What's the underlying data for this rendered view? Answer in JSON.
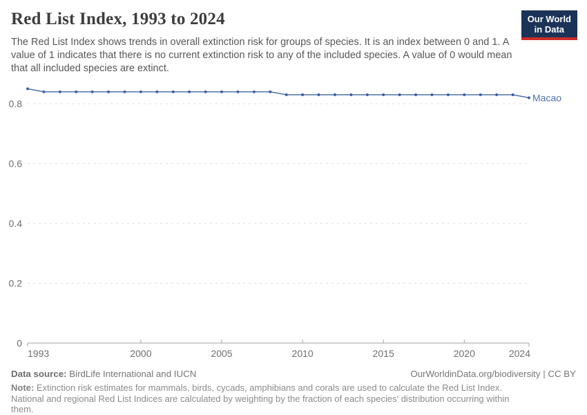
{
  "header": {
    "title": "Red List Index, 1993 to 2024",
    "subtitle": "The Red List Index shows trends in overall extinction risk for groups of species. It is an index between 0 and 1. A value of 1 indicates that there is no current extinction risk to any of the included species. A value of 0 would mean that all included species are extinct."
  },
  "logo": {
    "line1": "Our World",
    "line2": "in Data",
    "bg_color": "#1b3357",
    "accent_color": "#cb2d2a"
  },
  "chart_data": {
    "type": "line",
    "title": "Red List Index, 1993 to 2024",
    "xlabel": "",
    "ylabel": "",
    "xlim": [
      1993,
      2024
    ],
    "ylim": [
      0,
      0.88
    ],
    "x_ticks": [
      1993,
      2000,
      2005,
      2010,
      2015,
      2020,
      2024
    ],
    "y_ticks": [
      0,
      0.2,
      0.4,
      0.6,
      0.8
    ],
    "y_tick_labels": [
      "0",
      "0.2",
      "0.4",
      "0.6",
      "0.8"
    ],
    "grid": "horizontal dashed",
    "legend_position": "end-of-line label",
    "axis_color": "#a1a1a1",
    "grid_color": "#dcdcdc",
    "tick_label_color": "#6e6e6e",
    "series": [
      {
        "name": "Macao",
        "color": "#4e72a9",
        "marker_color": "#3f609f",
        "x": [
          1993,
          1994,
          1995,
          1996,
          1997,
          1998,
          1999,
          2000,
          2001,
          2002,
          2003,
          2004,
          2005,
          2006,
          2007,
          2008,
          2009,
          2010,
          2011,
          2012,
          2013,
          2014,
          2015,
          2016,
          2017,
          2018,
          2019,
          2020,
          2021,
          2022,
          2023,
          2024
        ],
        "values": [
          0.85,
          0.84,
          0.84,
          0.84,
          0.84,
          0.84,
          0.84,
          0.84,
          0.84,
          0.84,
          0.84,
          0.84,
          0.84,
          0.84,
          0.84,
          0.84,
          0.83,
          0.83,
          0.83,
          0.83,
          0.83,
          0.83,
          0.83,
          0.83,
          0.83,
          0.83,
          0.83,
          0.83,
          0.83,
          0.83,
          0.83,
          0.82
        ]
      }
    ]
  },
  "footer": {
    "datasource_label": "Data source:",
    "datasource": " BirdLife International and IUCN",
    "link": "OurWorldinData.org/biodiversity | CC BY",
    "note_label": "Note:",
    "note": " Extinction risk estimates for mammals, birds, cycads, amphibians and corals are used to calculate the Red List Index. National and regional Red List Indices are calculated by weighting by the fraction of each species' distribution occurring within them."
  }
}
